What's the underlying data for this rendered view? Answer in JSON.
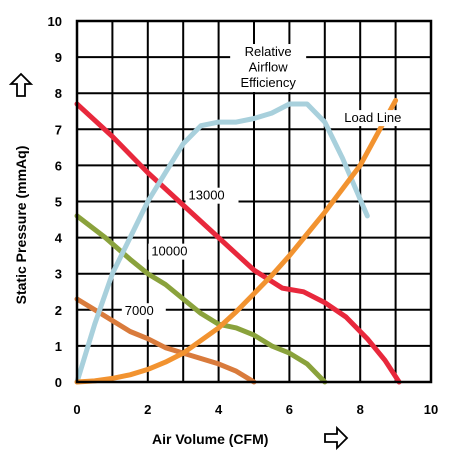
{
  "chart_data": {
    "type": "line",
    "xlabel": "Air Volume (CFM)",
    "ylabel": "Static Pressure (mmAq)",
    "xlim": [
      0,
      10
    ],
    "ylim": [
      0,
      10
    ],
    "xticks": [
      0,
      2,
      4,
      6,
      8,
      10
    ],
    "yticks": [
      0,
      1,
      2,
      3,
      4,
      5,
      6,
      7,
      8,
      9,
      10
    ],
    "grid": true,
    "series": [
      {
        "name": "13000",
        "color": "#e8283c",
        "x": [
          0,
          1,
          2,
          3,
          4,
          5,
          5.8,
          6.4,
          7,
          7.6,
          8.2,
          8.7,
          9.1
        ],
        "y": [
          7.7,
          6.8,
          5.8,
          4.9,
          4.0,
          3.1,
          2.6,
          2.5,
          2.2,
          1.8,
          1.2,
          0.6,
          0.0
        ]
      },
      {
        "name": "10000",
        "color": "#8aa23c",
        "x": [
          0,
          0.8,
          1.5,
          2,
          2.5,
          3,
          3.5,
          4,
          4.5,
          5,
          5.5,
          6,
          6.5,
          7
        ],
        "y": [
          4.6,
          4.0,
          3.4,
          3.0,
          2.7,
          2.3,
          1.9,
          1.6,
          1.5,
          1.3,
          1.0,
          0.8,
          0.5,
          0.0
        ]
      },
      {
        "name": "7000",
        "color": "#d97b3c",
        "x": [
          0,
          0.5,
          1,
          1.5,
          2,
          2.5,
          3,
          3.5,
          4,
          4.5,
          5
        ],
        "y": [
          2.3,
          2.0,
          1.7,
          1.4,
          1.2,
          0.95,
          0.8,
          0.65,
          0.5,
          0.3,
          0.0
        ]
      },
      {
        "name": "Relative Airflow Efficiency",
        "color": "#a8d0dc",
        "x": [
          0,
          0.5,
          1,
          1.5,
          2,
          2.5,
          3,
          3.5,
          4,
          4.5,
          5,
          5.5,
          6,
          6.5,
          7,
          7.5,
          8.2
        ],
        "y": [
          0,
          1.6,
          3.0,
          4.0,
          5.0,
          5.8,
          6.6,
          7.1,
          7.2,
          7.2,
          7.3,
          7.45,
          7.7,
          7.7,
          7.2,
          6.2,
          4.6
        ]
      },
      {
        "name": "Load Line",
        "color": "#f29330",
        "x": [
          0,
          0.5,
          1,
          1.5,
          2,
          2.5,
          3,
          3.5,
          4,
          4.5,
          5,
          5.5,
          6,
          6.5,
          7,
          7.5,
          8,
          8.5,
          9
        ],
        "y": [
          0,
          0.03,
          0.1,
          0.2,
          0.35,
          0.55,
          0.8,
          1.15,
          1.5,
          1.95,
          2.45,
          2.95,
          3.5,
          4.1,
          4.7,
          5.35,
          6.0,
          6.9,
          7.8
        ]
      }
    ],
    "annotations": {
      "label_13000": "13000",
      "label_10000": "10000",
      "label_7000": "7000",
      "efficiency_line1": "Relative",
      "efficiency_line2": "Airflow",
      "efficiency_line3": "Efficiency",
      "load_line": "Load Line"
    }
  }
}
